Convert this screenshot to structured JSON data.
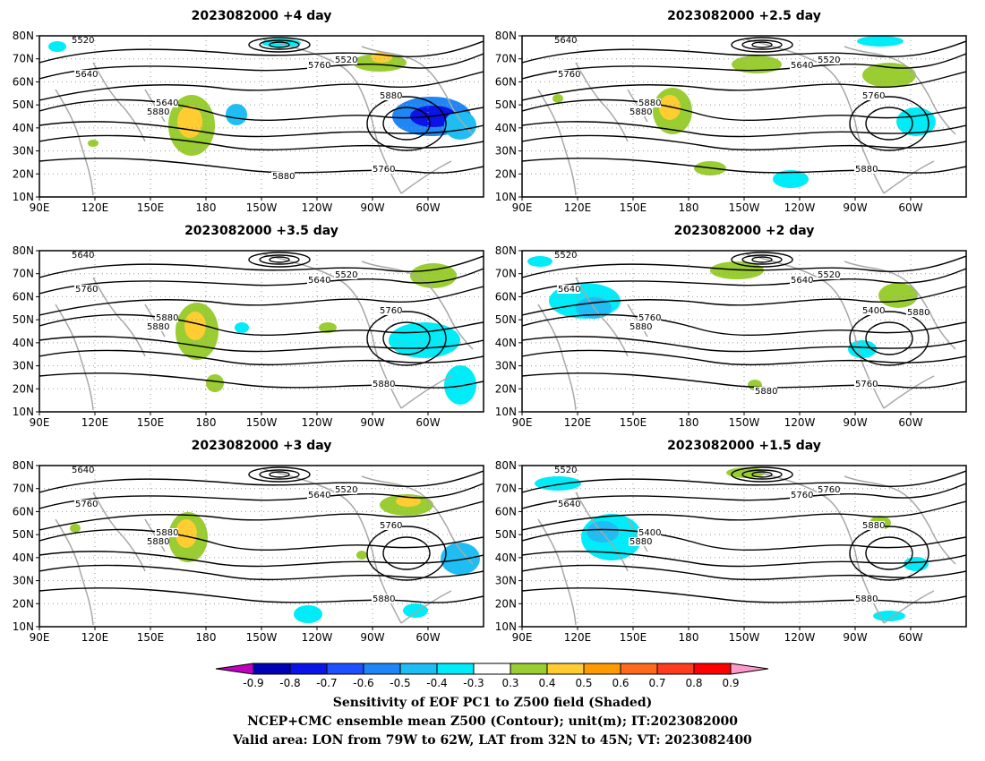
{
  "panels": [
    {
      "title": "2023082000  +4 day",
      "contour_labels": [
        "5520",
        "5640",
        "5640",
        "5520",
        "5760",
        "5880",
        "5760",
        "5880",
        "5880"
      ],
      "lat_ticks": [
        "80N",
        "70N",
        "60N",
        "50N",
        "40N",
        "30N",
        "20N",
        "10N"
      ],
      "lon_ticks": [
        "90E",
        "120E",
        "150E",
        "180",
        "150W",
        "120W",
        "90W",
        "60W"
      ]
    },
    {
      "title": "2023082000  +2.5  day",
      "contour_labels": [
        "5640",
        "5760",
        "5880",
        "5520",
        "5640",
        "5760",
        "5880",
        "5880"
      ],
      "lat_ticks": [
        "80N",
        "70N",
        "60N",
        "50N",
        "40N",
        "30N",
        "20N",
        "10N"
      ],
      "lon_ticks": [
        "90E",
        "120E",
        "150E",
        "180",
        "150W",
        "120W",
        "90W",
        "60W"
      ]
    },
    {
      "title": "2023082000  +3.5  day",
      "contour_labels": [
        "5640",
        "5760",
        "5880",
        "5520",
        "5640",
        "5760",
        "5880",
        "5880"
      ],
      "lat_ticks": [
        "80N",
        "70N",
        "60N",
        "50N",
        "40N",
        "30N",
        "20N",
        "10N"
      ],
      "lon_ticks": [
        "90E",
        "120E",
        "150E",
        "180",
        "150W",
        "120W",
        "90W",
        "60W"
      ]
    },
    {
      "title": "2023082000  +2  day",
      "contour_labels": [
        "5520",
        "5640",
        "5760",
        "5520",
        "5640",
        "5400",
        "5760",
        "5880",
        "5880",
        "5880"
      ],
      "lat_ticks": [
        "80N",
        "70N",
        "60N",
        "50N",
        "40N",
        "30N",
        "20N",
        "10N"
      ],
      "lon_ticks": [
        "90E",
        "120E",
        "150E",
        "180",
        "150W",
        "120W",
        "90W",
        "60W"
      ]
    },
    {
      "title": "2023082000  +3  day",
      "contour_labels": [
        "5640",
        "5760",
        "5880",
        "5520",
        "5640",
        "5760",
        "5880",
        "5880"
      ],
      "lat_ticks": [
        "80N",
        "70N",
        "60N",
        "50N",
        "40N",
        "30N",
        "20N",
        "10N"
      ],
      "lon_ticks": [
        "90E",
        "120E",
        "150E",
        "180",
        "150W",
        "120W",
        "90W",
        "60W"
      ]
    },
    {
      "title": "2023082000  +1.5  day",
      "contour_labels": [
        "5520",
        "5640",
        "5400",
        "5760",
        "5760",
        "5880",
        "5880",
        "5880"
      ],
      "lat_ticks": [
        "80N",
        "70N",
        "60N",
        "50N",
        "40N",
        "30N",
        "20N",
        "10N"
      ],
      "lon_ticks": [
        "90E",
        "120E",
        "150E",
        "180",
        "150W",
        "120W",
        "90W",
        "60W"
      ]
    }
  ],
  "colorbar": {
    "labels": [
      "-0.9",
      "-0.8",
      "-0.7",
      "-0.6",
      "-0.5",
      "-0.4",
      "-0.3",
      "0.3",
      "0.4",
      "0.5",
      "0.6",
      "0.7",
      "0.8",
      "0.9"
    ],
    "colors": [
      "#0000b4",
      "#0a14e6",
      "#1e50ff",
      "#1e87f5",
      "#1ebef5",
      "#00ecf8",
      "#ffffff",
      "#9acd32",
      "#ffcd32",
      "#ff9b00",
      "#ff6a1e",
      "#ff3c1e",
      "#ff0000"
    ],
    "low_arrow_color": "#c000c0",
    "high_arrow_color": "#ff99cc"
  },
  "caption": [
    "Sensitivity of EOF PC1 to Z500 field (Shaded)",
    "NCEP+CMC ensemble mean Z500 (Contour); unit(m); IT:2023082000",
    "Valid area: LON from 79W to 62W, LAT from 32N to 45N; VT: 2023082400"
  ],
  "colors": {
    "contour": "#000000",
    "coast": "#a8a8a8",
    "grid": "#9a9a9a",
    "shade_green": "#9acd32",
    "shade_yellow": "#ffcd32",
    "shade_cyan": "#00ecf8",
    "shade_lightblue": "#1ebef5",
    "shade_blue": "#1e87f5",
    "shade_dark": "#0a14e6"
  }
}
